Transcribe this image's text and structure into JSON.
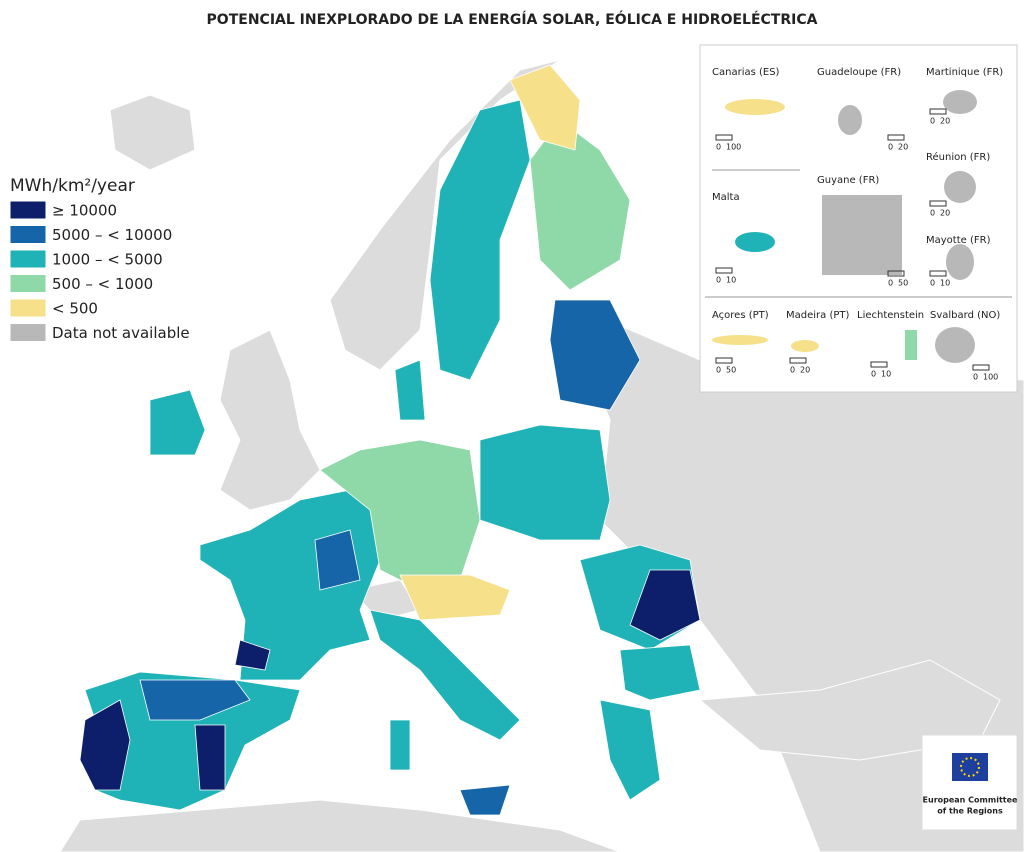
{
  "title": "POTENCIAL INEXPLORADO DE LA ENERGÍA SOLAR, EÓLICA E HIDROELÉCTRICA",
  "legend": {
    "title": "MWh/km²/year",
    "items": [
      {
        "label": "≥ 10000",
        "color": "#0d1f6b"
      },
      {
        "label": "5000 – < 10000",
        "color": "#1565a8"
      },
      {
        "label": "1000 – < 5000",
        "color": "#1fb3b7"
      },
      {
        "label": "500 – < 1000",
        "color": "#8fd9a8"
      },
      {
        "label": "< 500",
        "color": "#f7e08a"
      },
      {
        "label": "Data not available",
        "color": "#b8b8b8"
      }
    ]
  },
  "insets": [
    {
      "name": "Canarias (ES)",
      "scale": [
        0,
        100
      ]
    },
    {
      "name": "Guadeloupe (FR)",
      "scale": [
        0,
        20
      ]
    },
    {
      "name": "Martinique (FR)",
      "scale": [
        0,
        20
      ]
    },
    {
      "name": "Réunion (FR)",
      "scale": [
        0,
        20
      ]
    },
    {
      "name": "Malta",
      "scale": [
        0,
        10
      ]
    },
    {
      "name": "Guyane (FR)",
      "scale": [
        0,
        50
      ]
    },
    {
      "name": "Mayotte (FR)",
      "scale": [
        0,
        10
      ]
    },
    {
      "name": "Açores (PT)",
      "scale": [
        0,
        50
      ]
    },
    {
      "name": "Madeira (PT)",
      "scale": [
        0,
        20
      ]
    },
    {
      "name": "Liechtenstein",
      "scale": [
        0,
        10
      ]
    },
    {
      "name": "Svalbard (NO)",
      "scale": [
        0,
        100
      ]
    }
  ],
  "logo": [
    "European Committee",
    "of the Regions"
  ]
}
